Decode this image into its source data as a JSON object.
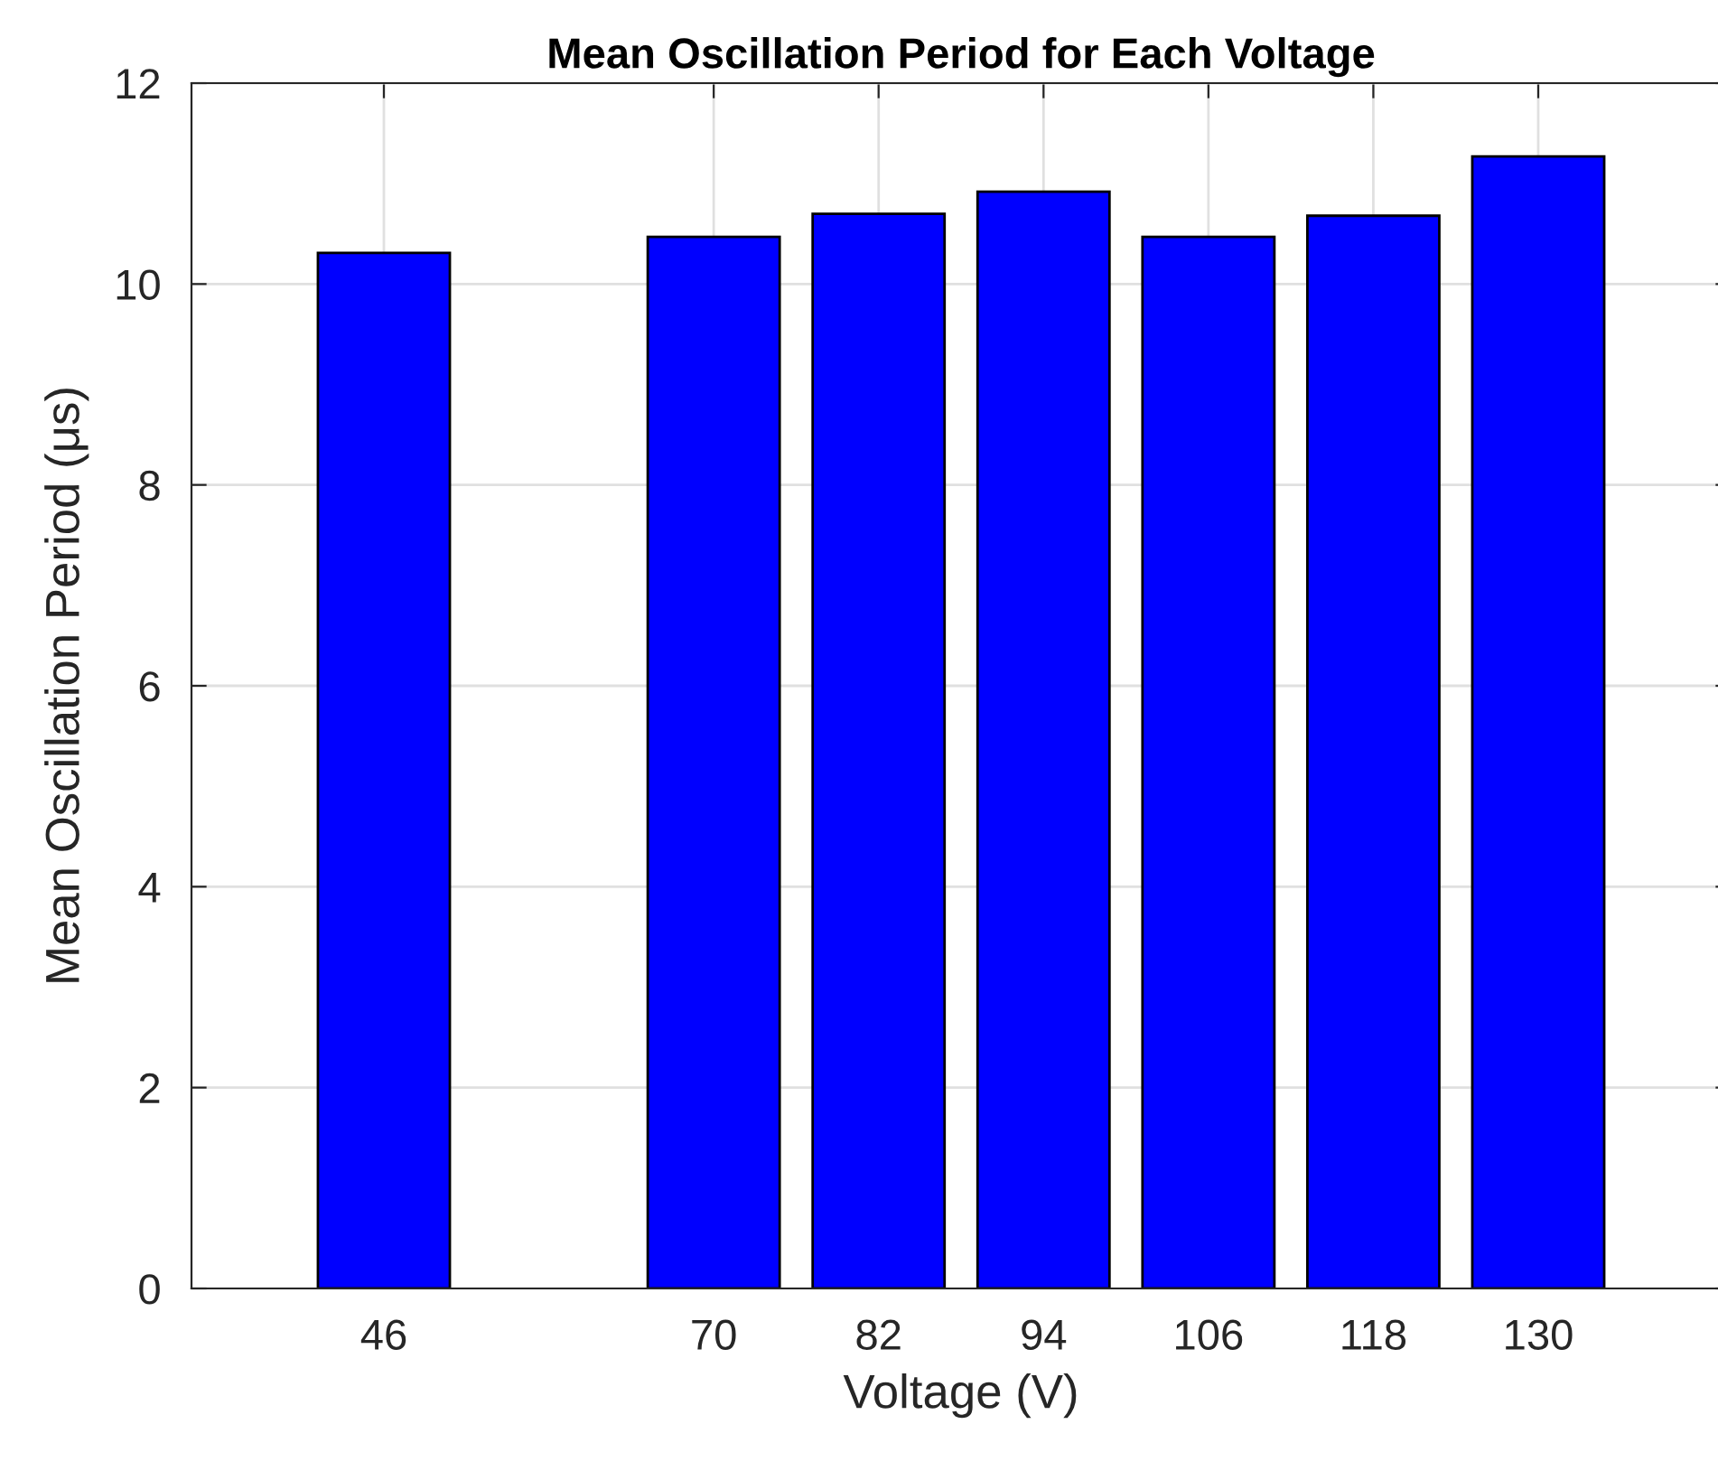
{
  "chart_data": {
    "type": "bar",
    "title": "Mean Oscillation Period for Each Voltage",
    "xlabel": "Voltage (V)",
    "ylabel": "Mean Oscillation Period (μs)",
    "x": [
      46,
      70,
      82,
      94,
      106,
      118,
      130
    ],
    "values": [
      10.31,
      10.47,
      10.7,
      10.92,
      10.47,
      10.68,
      11.27
    ],
    "color": "#0000ff",
    "xlim": [
      32,
      144
    ],
    "xticks": [
      46,
      70,
      82,
      94,
      106,
      118,
      130
    ],
    "ylim": [
      0,
      12
    ],
    "yticks": [
      0,
      2,
      4,
      6,
      8,
      10,
      12
    ],
    "grid": true
  }
}
